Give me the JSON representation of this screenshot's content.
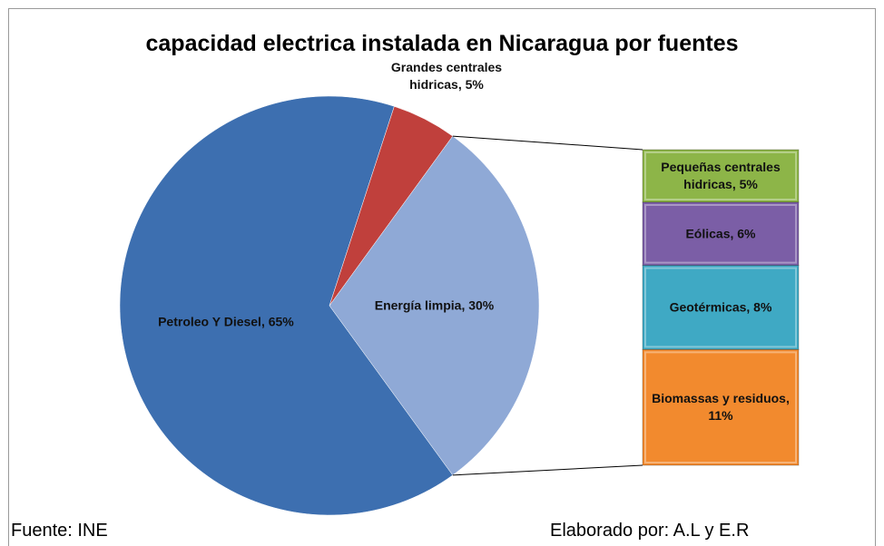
{
  "chart_data": {
    "type": "pie-of-bar",
    "title": "capacidad electrica instalada en Nicaragua por fuentes",
    "pie": {
      "values": [
        65,
        5,
        30
      ],
      "value_labels": [
        "Petroleo Y Diesel, 65%",
        "Grandes centrales hidricas, 5%",
        "Energía limpia, 30%"
      ],
      "colors": [
        "#3d6fb0",
        "#c0403c",
        "#8fa9d6"
      ]
    },
    "bar": {
      "values": [
        5,
        6,
        8,
        11
      ],
      "value_labels": [
        "Pequeñas centrales hidricas, 5%",
        "Eólicas, 6%",
        "Geotérmicas, 8%",
        "Biomassas y residuos, 11%"
      ],
      "colors": [
        "#8db548",
        "#7b5ea6",
        "#3fa9c4",
        "#f28a2e"
      ]
    }
  },
  "footer": {
    "source": "Fuente: INE",
    "credit": "Elaborado por: A.L y E.R"
  }
}
